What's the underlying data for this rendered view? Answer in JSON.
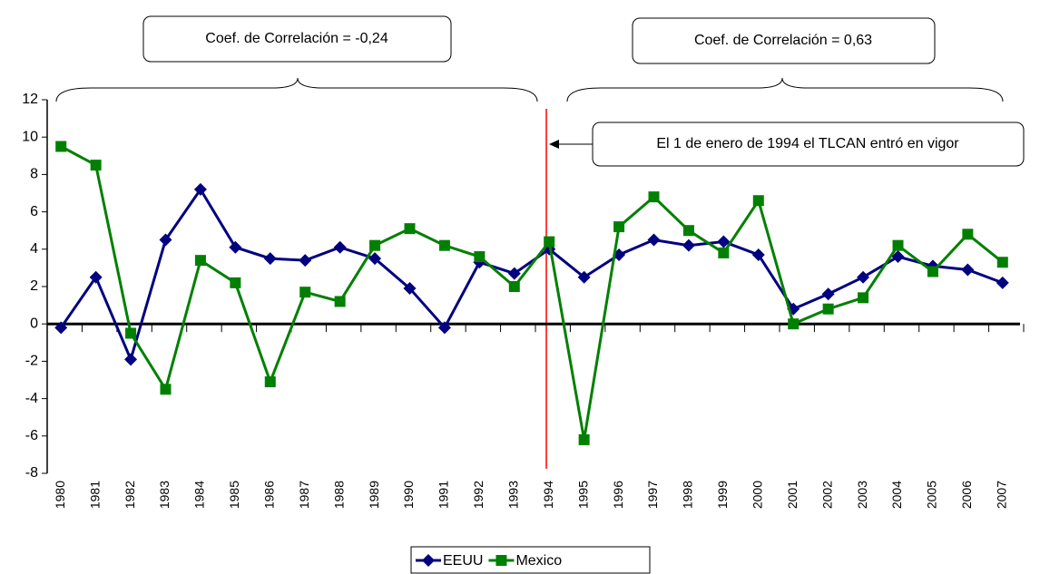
{
  "chart_data": {
    "type": "line",
    "categories": [
      "1980",
      "1981",
      "1982",
      "1983",
      "1984",
      "1985",
      "1986",
      "1987",
      "1988",
      "1989",
      "1990",
      "1991",
      "1992",
      "1993",
      "1994",
      "1995",
      "1996",
      "1997",
      "1998",
      "1999",
      "2000",
      "2001",
      "2002",
      "2003",
      "2004",
      "2005",
      "2006",
      "2007"
    ],
    "series": [
      {
        "name": "EEUU",
        "color": "#000080",
        "marker": "diamond",
        "values": [
          -0.2,
          2.5,
          -1.9,
          4.5,
          7.2,
          4.1,
          3.5,
          3.4,
          4.1,
          3.5,
          1.9,
          -0.2,
          3.3,
          2.7,
          4.0,
          2.5,
          3.7,
          4.5,
          4.2,
          4.4,
          3.7,
          0.8,
          1.6,
          2.5,
          3.6,
          3.1,
          2.9,
          2.2
        ]
      },
      {
        "name": "Mexico",
        "color": "#008000",
        "marker": "square",
        "values": [
          9.5,
          8.5,
          -0.5,
          -3.5,
          3.4,
          2.2,
          -3.1,
          1.7,
          1.2,
          4.2,
          5.1,
          4.2,
          3.6,
          2.0,
          4.4,
          -6.2,
          5.2,
          6.8,
          5.0,
          3.8,
          6.6,
          0.0,
          0.8,
          1.4,
          4.2,
          2.8,
          4.8,
          3.3
        ]
      }
    ],
    "ylim": [
      -8,
      12
    ],
    "yticks": [
      -8,
      -6,
      -4,
      -2,
      0,
      2,
      4,
      6,
      8,
      10,
      12
    ],
    "annotations": [
      "Coef. de Correlación = -0,24",
      "Coef. de Correlación = 0,63",
      "El 1 de enero de 1994 el TLCAN entró en vigor"
    ],
    "legend": "bottom",
    "grid": false
  }
}
